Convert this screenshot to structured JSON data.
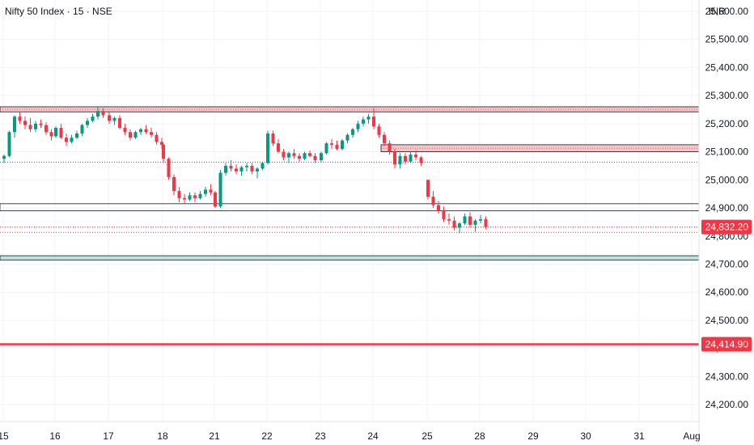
{
  "header": {
    "title": "Nifty 50 Index · 15 · NSE",
    "currency": "INR"
  },
  "chart_data": {
    "type": "candlestick",
    "symbol": "Nifty 50 Index",
    "interval": "15",
    "exchange": "NSE",
    "currency": "INR",
    "ylim": [
      24140,
      25640
    ],
    "y_ticks": [
      "25,600.00",
      "25,500.00",
      "25,400.00",
      "25,300.00",
      "25,200.00",
      "25,100.00",
      "25,000.00",
      "24,900.00",
      "24,800.00",
      "24,700.00",
      "24,600.00",
      "24,500.00",
      "24,400.00",
      "24,300.00",
      "24,200.00"
    ],
    "x_ticks": [
      "15",
      "16",
      "17",
      "18",
      "21",
      "22",
      "23",
      "24",
      "25",
      "28",
      "29",
      "30",
      "31",
      "Aug"
    ],
    "grid": true,
    "colors": {
      "up": "#089981",
      "down": "#f23645",
      "resistance_fill": "#f8c3c7",
      "support_fill": "#bde3de",
      "label_bg": "#f23645"
    },
    "zones": [
      {
        "name": "resistance-zone-top",
        "from": 25242,
        "to": 25260,
        "type": "resistance"
      },
      {
        "name": "resistance-zone-mid",
        "from": 25100,
        "to": 25125,
        "type": "resistance"
      },
      {
        "name": "support-lines-mid",
        "from": 24890,
        "to": 24915,
        "type": "neutral"
      },
      {
        "name": "support-zone-low",
        "from": 24715,
        "to": 24730,
        "type": "support"
      }
    ],
    "lines": [
      {
        "name": "dotted-level-upper",
        "value": 25063,
        "style": "dotted",
        "color": "#555555"
      },
      {
        "name": "last-price-line",
        "value": 24832.2,
        "style": "dotted",
        "color": "#f23645"
      },
      {
        "name": "level-24800-dotted",
        "value": 24813,
        "style": "dotted",
        "color": "#f23645"
      },
      {
        "name": "target-level",
        "value": 24414.9,
        "style": "solid",
        "color": "#f23645"
      }
    ],
    "price_labels": [
      {
        "value": 24832.2,
        "text": "24,832.20"
      },
      {
        "value": 24414.9,
        "text": "24,414.90"
      }
    ],
    "series": [
      {
        "day": "15",
        "ohlc": [
          [
            25075,
            25090,
            25060,
            25085
          ],
          [
            25085,
            25175,
            25080,
            25170
          ],
          [
            25170,
            25230,
            25150,
            25225
          ],
          [
            25225,
            25240,
            25200,
            25210
          ],
          [
            25210,
            25225,
            25180,
            25195
          ],
          [
            25195,
            25220,
            25170,
            25180
          ],
          [
            25180,
            25210,
            25170,
            25200
          ],
          [
            25200,
            25215,
            25185,
            25195
          ],
          [
            25195,
            25205,
            25160,
            25170
          ],
          [
            25170,
            25180,
            25140,
            25155
          ]
        ]
      },
      {
        "day": "16",
        "ohlc": [
          [
            25155,
            25190,
            25150,
            25185
          ],
          [
            25185,
            25200,
            25145,
            25150
          ],
          [
            25150,
            25165,
            25120,
            25135
          ],
          [
            25135,
            25160,
            25130,
            25150
          ],
          [
            25150,
            25175,
            25145,
            25165
          ],
          [
            25165,
            25200,
            25155,
            25195
          ],
          [
            25195,
            25220,
            25185,
            25210
          ],
          [
            25210,
            25235,
            25205,
            25225
          ],
          [
            25225,
            25260,
            25215,
            25245
          ],
          [
            25245,
            25255,
            25220,
            25230
          ]
        ]
      },
      {
        "day": "17",
        "ohlc": [
          [
            25230,
            25245,
            25200,
            25210
          ],
          [
            25210,
            25225,
            25195,
            25220
          ],
          [
            25220,
            25230,
            25180,
            25185
          ],
          [
            25185,
            25200,
            25160,
            25170
          ],
          [
            25170,
            25180,
            25140,
            25150
          ],
          [
            25150,
            25175,
            25145,
            25170
          ],
          [
            25170,
            25185,
            25160,
            25180
          ],
          [
            25180,
            25195,
            25165,
            25170
          ],
          [
            25170,
            25185,
            25150,
            25160
          ],
          [
            25160,
            25170,
            25125,
            25135
          ],
          [
            25135,
            25150,
            25110,
            25125
          ]
        ]
      },
      {
        "day": "18",
        "ohlc": [
          [
            25125,
            25130,
            25060,
            25075
          ],
          [
            25075,
            25080,
            25000,
            25010
          ],
          [
            25010,
            25020,
            24945,
            24960
          ],
          [
            24960,
            24975,
            24920,
            24935
          ],
          [
            24935,
            24950,
            24915,
            24930
          ],
          [
            24930,
            24955,
            24925,
            24945
          ],
          [
            24945,
            24955,
            24920,
            24935
          ],
          [
            24935,
            24960,
            24930,
            24950
          ],
          [
            24950,
            24975,
            24940,
            24965
          ],
          [
            24965,
            24985,
            24945,
            24955
          ]
        ]
      },
      {
        "day": "21",
        "ohlc": [
          [
            24955,
            24960,
            24900,
            24905
          ],
          [
            24905,
            25035,
            24900,
            25025
          ],
          [
            25025,
            25060,
            25015,
            25050
          ],
          [
            25050,
            25070,
            25030,
            25040
          ],
          [
            25040,
            25055,
            25020,
            25030
          ],
          [
            25030,
            25050,
            25015,
            25045
          ],
          [
            25045,
            25060,
            25030,
            25050
          ],
          [
            25050,
            25060,
            25020,
            25030
          ],
          [
            25030,
            25045,
            25005,
            25040
          ],
          [
            25040,
            25065,
            25035,
            25060
          ]
        ]
      },
      {
        "day": "22",
        "ohlc": [
          [
            25060,
            25175,
            25055,
            25165
          ],
          [
            25165,
            25175,
            25120,
            25130
          ],
          [
            25130,
            25145,
            25095,
            25100
          ],
          [
            25100,
            25110,
            25070,
            25080
          ],
          [
            25080,
            25100,
            25060,
            25095
          ],
          [
            25095,
            25110,
            25075,
            25085
          ],
          [
            25085,
            25095,
            25065,
            25075
          ],
          [
            25075,
            25100,
            25070,
            25095
          ],
          [
            25095,
            25105,
            25080,
            25085
          ],
          [
            25085,
            25095,
            25060,
            25070
          ]
        ]
      },
      {
        "day": "23",
        "ohlc": [
          [
            25070,
            25100,
            25065,
            25095
          ],
          [
            25095,
            25135,
            25090,
            25130
          ],
          [
            25130,
            25145,
            25110,
            25125
          ],
          [
            25125,
            25140,
            25105,
            25110
          ],
          [
            25110,
            25145,
            25105,
            25140
          ],
          [
            25140,
            25165,
            25130,
            25160
          ],
          [
            25160,
            25185,
            25150,
            25180
          ],
          [
            25180,
            25210,
            25170,
            25200
          ],
          [
            25200,
            25225,
            25190,
            25215
          ],
          [
            25215,
            25235,
            25200,
            25225
          ]
        ]
      },
      {
        "day": "24",
        "ohlc": [
          [
            25225,
            25255,
            25180,
            25190
          ],
          [
            25190,
            25200,
            25150,
            25160
          ],
          [
            25160,
            25170,
            25120,
            25130
          ],
          [
            25130,
            25140,
            25090,
            25100
          ],
          [
            25100,
            25110,
            25040,
            25055
          ],
          [
            25055,
            25095,
            25040,
            25085
          ],
          [
            25085,
            25095,
            25055,
            25065
          ],
          [
            25065,
            25100,
            25060,
            25090
          ],
          [
            25090,
            25105,
            25070,
            25080
          ],
          [
            25080,
            25085,
            25050,
            25060
          ]
        ]
      },
      {
        "day": "25",
        "ohlc": [
          [
            25000,
            25000,
            24930,
            24940
          ],
          [
            24940,
            24960,
            24900,
            24910
          ],
          [
            24910,
            24925,
            24880,
            24890
          ],
          [
            24890,
            24905,
            24850,
            24860
          ],
          [
            24860,
            24880,
            24840,
            24855
          ],
          [
            24855,
            24870,
            24820,
            24830
          ],
          [
            24830,
            24850,
            24810,
            24845
          ],
          [
            24845,
            24880,
            24840,
            24870
          ],
          [
            24870,
            24885,
            24830,
            24840
          ],
          [
            24840,
            24860,
            24815,
            24855
          ],
          [
            24855,
            24875,
            24845,
            24860
          ],
          [
            24860,
            24870,
            24825,
            24832
          ]
        ]
      }
    ]
  }
}
